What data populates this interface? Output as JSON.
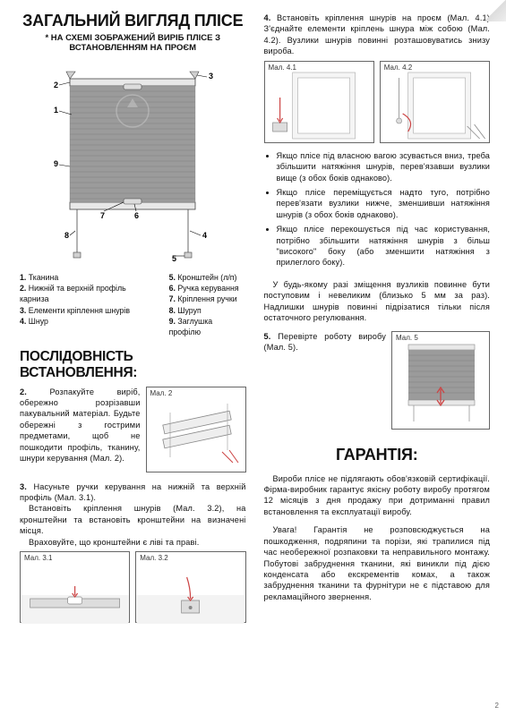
{
  "left": {
    "title": "ЗАГАЛЬНИЙ ВИГЛЯД ПЛІСЕ",
    "subtitle": "* НА СХЕМІ ЗОБРАЖЕНИЙ ВИРІБ ПЛІСЕ З ВСТАНОВЛЕННЯМ НА ПРОЄМ",
    "legend_left": [
      {
        "n": "1.",
        "t": "Тканина"
      },
      {
        "n": "2.",
        "t": "Нижній та верхній профіль карниза"
      },
      {
        "n": "3.",
        "t": "Елементи кріплення шнурів"
      },
      {
        "n": "4.",
        "t": "Шнур"
      }
    ],
    "legend_right": [
      {
        "n": "5.",
        "t": "Кронштейн (л/п)"
      },
      {
        "n": "6.",
        "t": "Ручка керування"
      },
      {
        "n": "7.",
        "t": "Кріплення ручки"
      },
      {
        "n": "8.",
        "t": "Шуруп"
      },
      {
        "n": "9.",
        "t": "Заглушка профілю"
      }
    ],
    "install_title": "ПОСЛІДОВНІСТЬ ВСТАНОВЛЕННЯ:",
    "step2": "Розпакуйте виріб, обережно розрізавши пакувальний матеріал. Будьте обережні з гострими предметами, щоб не пошкодити профіль, тканину, шнури керування (Мал. 2).",
    "step2_n": "2.",
    "step3a_n": "3.",
    "step3a": "Насуньте ручки керування на нижній та верхній профіль (Мал. 3.1).",
    "step3b": "Встановіть кріплення шнурів (Мал. 3.2), на кронштейни та встановіть кронштейни на визначені місця.",
    "step3c": "Враховуйте, що кронштейни є ліві та праві.",
    "fig2_label": "Мал. 2",
    "fig31_label": "Мал. 3.1",
    "fig32_label": "Мал. 3.2"
  },
  "right": {
    "step4_n": "4.",
    "step4": "Встановіть кріплення шнурів на проєм (Мал. 4.1) З'єднайте елементи кріплень шнура між собою (Мал. 4.2). Вузлики шнурів повинні розташовуватись знизу вироба.",
    "fig41_label": "Мал. 4.1",
    "fig42_label": "Мал. 4.2",
    "bullets": [
      "Якщо плісе під власною вагою зсувається вниз, треба збільшити натяжіння шнурів, перев'язавши вузлики вище (з обох боків однаково).",
      "Якщо плісе переміщується надто туго, потрібно перев'язати вузлики нижче, зменшивши натяжіння шнурів (з обох боків однаково).",
      "Якщо плісе перекошується під час користування, потрібно збільшити натяжіння шнурів з більш \"високого\" боку (або зменшити натяжіння з прилеглого боку)."
    ],
    "note": "У будь-якому разі зміщення вузликів повинне бути поступовим і невеликим (близько 5 мм за раз). Надлишки шнурів повинні підрізатися тільки після остаточного регулювання.",
    "step5_n": "5.",
    "step5": "Перевірте роботу виробу (Мал. 5).",
    "fig5_label": "Мал. 5",
    "guarantee_title": "ГАРАНТІЯ:",
    "g1": "Вироби плісе не підлягають обов'язковій сертифікації. Фірма-виробник гарантує якісну роботу виробу протягом 12 місяців з дня продажу при дотриманні правил встановлення та експлуатації виробу.",
    "g2": "Увага! Гарантія не розповсюджується на пошкодження, подряпини та порізи, які трапилися під час необережної розпаковки та неправильного монтажу. Побутові забруднення тканини, які виникли під дією конденсата або екскрементів комах, а також забруднення тканини та фурнітури не є підставою для рекламаційного звернення."
  },
  "pagenum": "2",
  "colors": {
    "blind": "#9b9b9b",
    "line": "#444",
    "box": "#666"
  }
}
